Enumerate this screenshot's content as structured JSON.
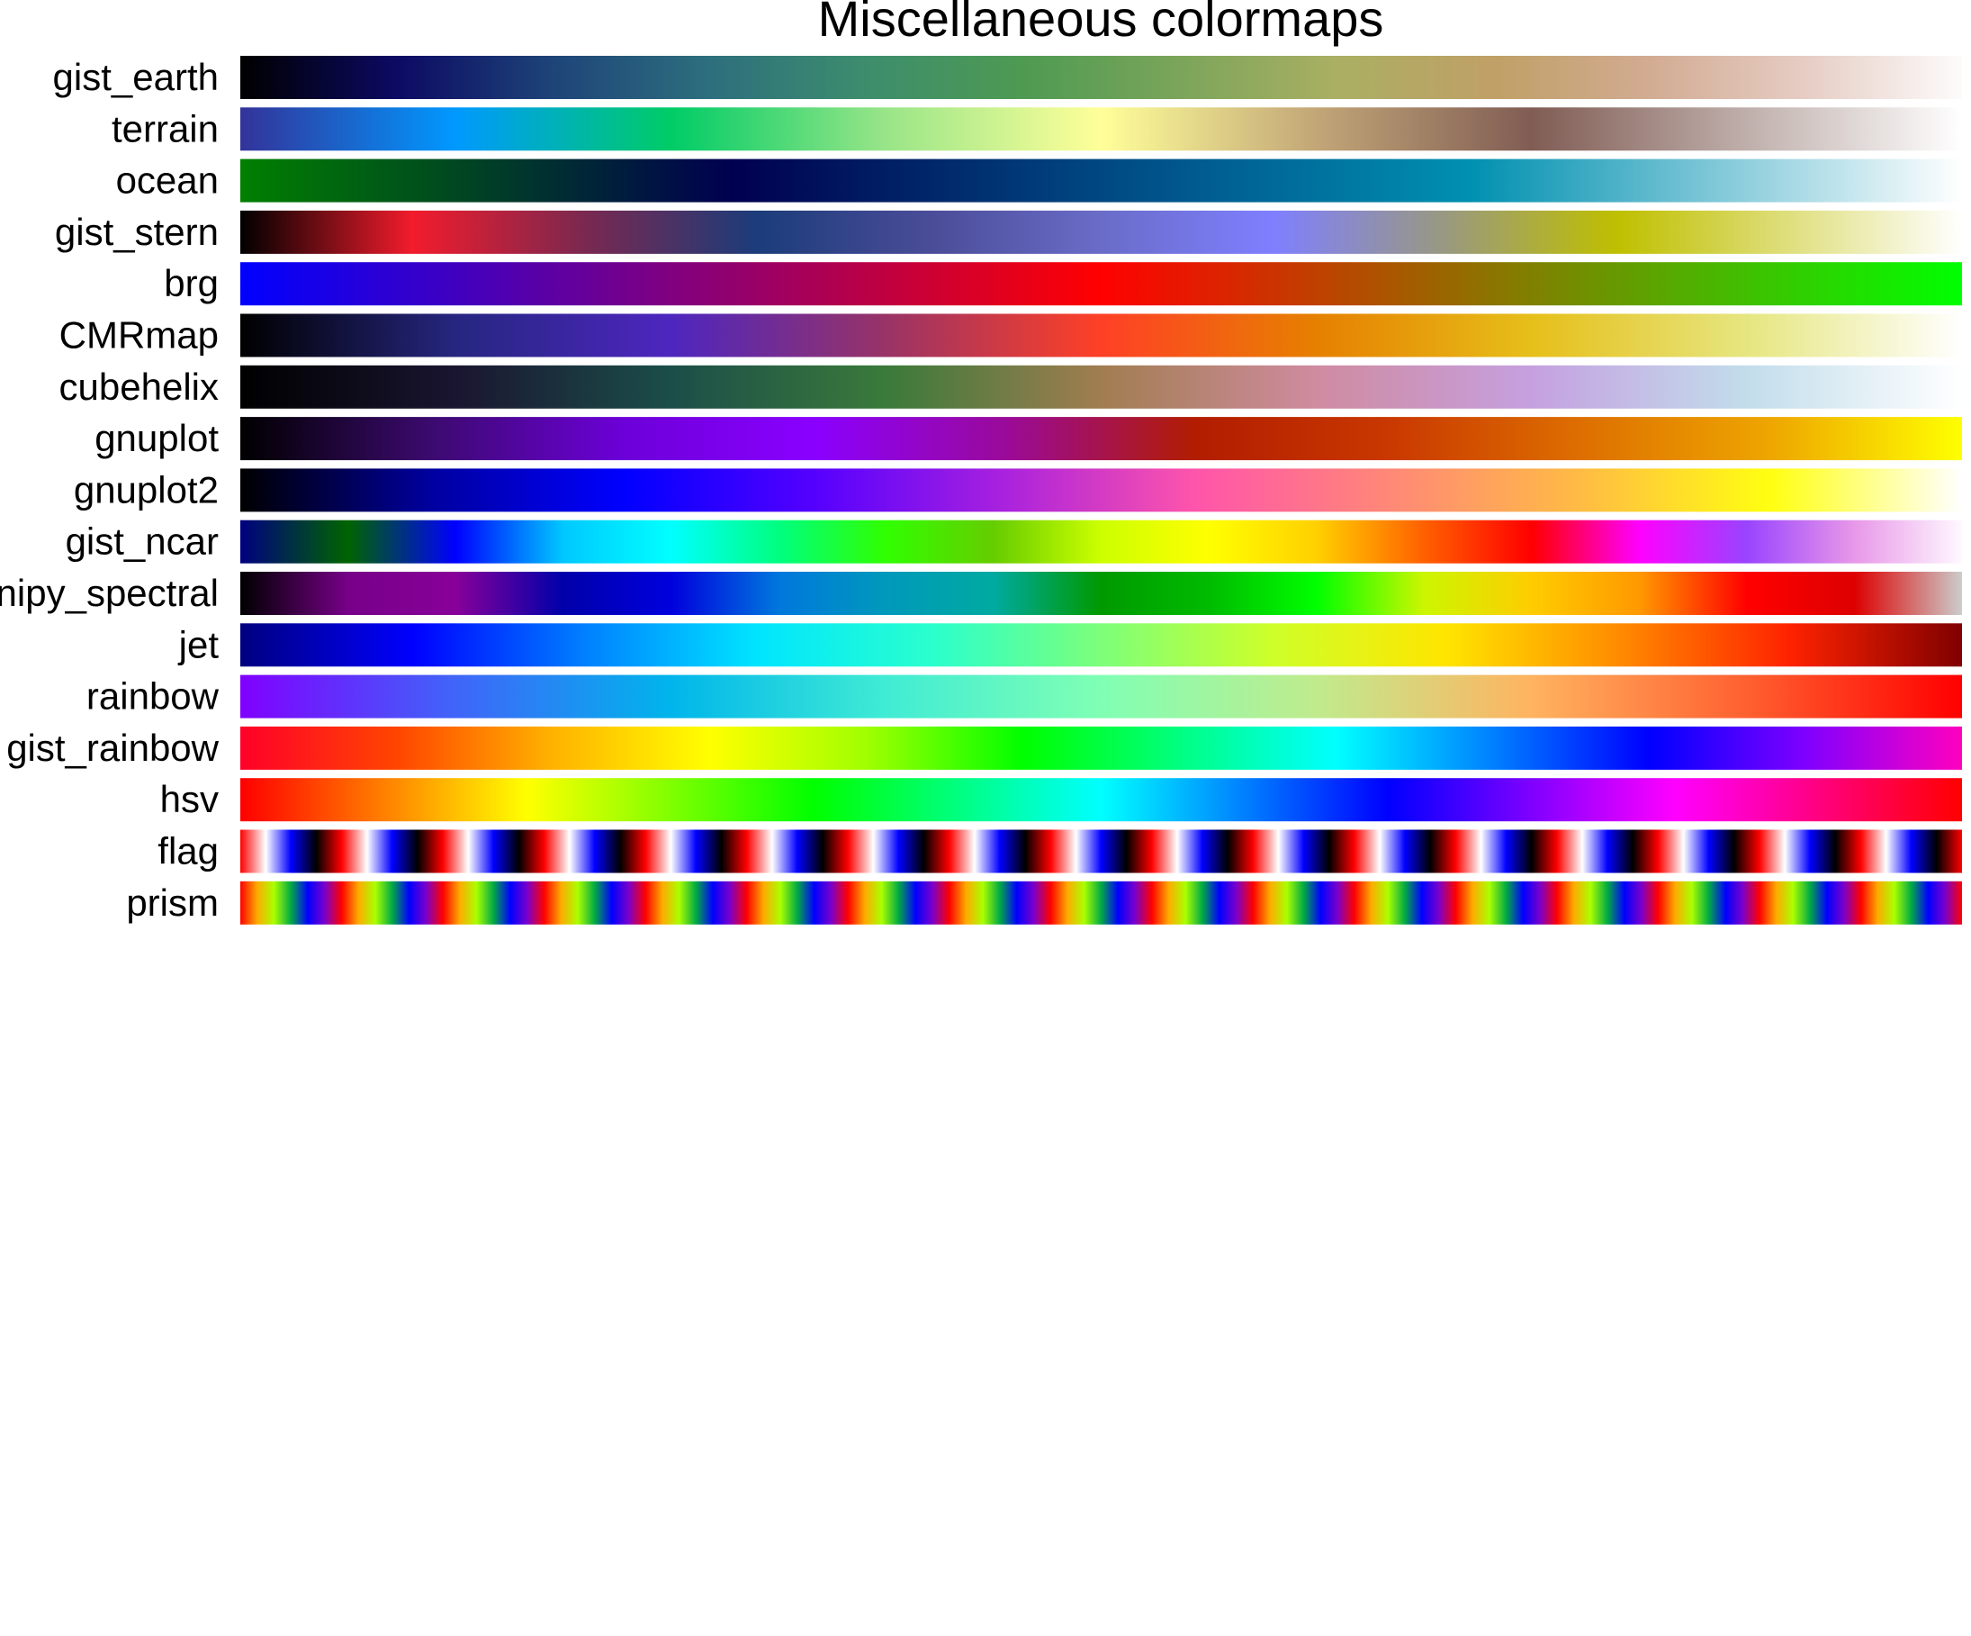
{
  "chart_data": {
    "type": "colormap_reference",
    "title": "Miscellaneous colormaps",
    "colormaps": [
      {
        "name": "gist_earth",
        "stops": [
          "#000000",
          "#0c0a63",
          "#1e4478",
          "#2d6f7d",
          "#3d8d6d",
          "#4e9a52",
          "#7ba55a",
          "#aaaf63",
          "#c0a066",
          "#d2ab92",
          "#e6cdc4",
          "#fdfbfb"
        ]
      },
      {
        "name": "terrain",
        "stops": [
          "#333399",
          "#0099ff",
          "#00cc66",
          "#99e588",
          "#ffff99",
          "#c2a677",
          "#805c54",
          "#bfafab",
          "#ffffff"
        ]
      },
      {
        "name": "ocean",
        "stops": [
          "#008000",
          "#003f26",
          "#000050",
          "#003070",
          "#006094",
          "#0090b0",
          "#80c8d8",
          "#ffffff"
        ]
      },
      {
        "name": "gist_stern",
        "stops": [
          "#000000",
          "#f21c2c",
          "#7a2850",
          "#1b3c7a",
          "#4a4c98",
          "#6a6cc8",
          "#7f7fff",
          "#999980",
          "#bfbf00",
          "#dfdf7f",
          "#ffffff"
        ]
      },
      {
        "name": "brg",
        "stops": [
          "#0000ff",
          "#800080",
          "#ff0000",
          "#808000",
          "#00ff00"
        ]
      },
      {
        "name": "CMRmap",
        "stops": [
          "#000000",
          "#262680",
          "#4d26bf",
          "#993366",
          "#ff4026",
          "#e68000",
          "#e6bf1a",
          "#e6e680",
          "#ffffff"
        ]
      },
      {
        "name": "cubehelix",
        "stops": [
          "#000000",
          "#1a1530",
          "#1b4e49",
          "#3a7a3a",
          "#a17d50",
          "#d08ba0",
          "#c5a0e0",
          "#c2ddeb",
          "#ffffff"
        ]
      },
      {
        "name": "gnuplot",
        "stops": [
          "#000000",
          "#3c0a6f",
          "#6c00d8",
          "#8a00ff",
          "#9a0a99",
          "#b21d00",
          "#c93800",
          "#dd6e00",
          "#eea600",
          "#ffff00"
        ]
      },
      {
        "name": "gnuplot2",
        "stops": [
          "#000000",
          "#0000a0",
          "#0000ff",
          "#5500ff",
          "#aa22dd",
          "#ff55aa",
          "#ff8877",
          "#ffbb44",
          "#ffff11",
          "#ffffff"
        ]
      },
      {
        "name": "gist_ncar",
        "stops": [
          "#000080",
          "#006400",
          "#0000ff",
          "#00c8ff",
          "#00ffff",
          "#00ff80",
          "#30ff00",
          "#66cc00",
          "#ccff00",
          "#ffff00",
          "#ffd000",
          "#ff6000",
          "#ff0000",
          "#ff00ff",
          "#9944ff",
          "#e898e8",
          "#fff8ff"
        ]
      },
      {
        "name": "nipy_spectral",
        "stops": [
          "#000000",
          "#770088",
          "#880099",
          "#0000aa",
          "#0000dd",
          "#0077dd",
          "#0099bb",
          "#00aaa0",
          "#009900",
          "#00bb00",
          "#00ff00",
          "#ccf600",
          "#ffcc00",
          "#ff9900",
          "#ff0000",
          "#dd0000",
          "#cccccc"
        ]
      },
      {
        "name": "jet",
        "stops": [
          "#000080",
          "#0000ff",
          "#0080ff",
          "#00e5ff",
          "#29ffce",
          "#7dff7a",
          "#ceff29",
          "#ffe500",
          "#ff8c00",
          "#ff2200",
          "#800000"
        ]
      },
      {
        "name": "rainbow",
        "stops": [
          "#8000ff",
          "#4065f9",
          "#00b5eb",
          "#40ecd4",
          "#80ffb4",
          "#c0eb8d",
          "#ffb360",
          "#ff6030",
          "#ff0000"
        ]
      },
      {
        "name": "gist_rainbow",
        "stops": [
          "#ff0029",
          "#ff4500",
          "#ffb300",
          "#ffff00",
          "#a0ff00",
          "#00ff00",
          "#00ff80",
          "#00ffff",
          "#0080ff",
          "#0000ff",
          "#7f00ff",
          "#ff00bf"
        ]
      },
      {
        "name": "hsv",
        "stops": [
          "#ff0000",
          "#ffff00",
          "#00ff00",
          "#00ffff",
          "#0000ff",
          "#ff00ff",
          "#ff0000"
        ]
      },
      {
        "name": "flag",
        "stops": [],
        "repeat": 17,
        "pattern": [
          "#ff0000",
          "#ffffff",
          "#0000ff",
          "#000000",
          "#ff0000"
        ]
      },
      {
        "name": "prism",
        "stops": [],
        "repeat": 17,
        "pattern": [
          "#ff0000",
          "#ffaa00",
          "#aaff00",
          "#00aa44",
          "#0000ff",
          "#7a00cc",
          "#ff0000"
        ]
      }
    ]
  }
}
